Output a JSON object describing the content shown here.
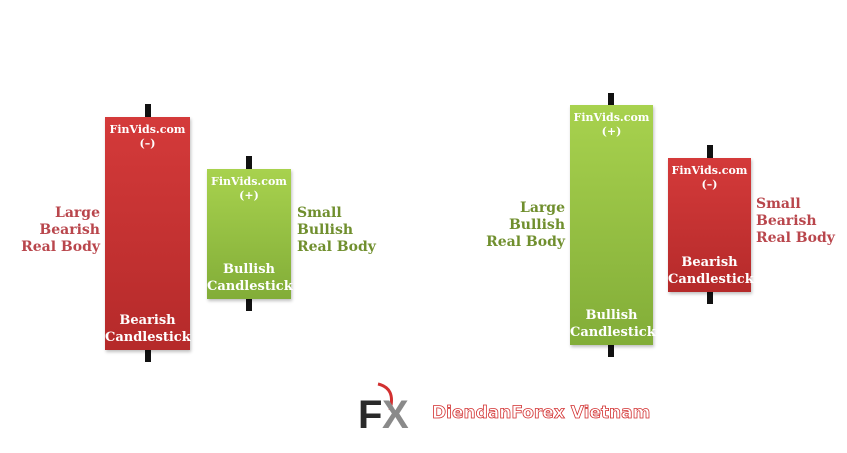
{
  "left_pair": {
    "large": {
      "brand": "FinVids.com",
      "sign": "(–)",
      "name_line1": "Bearish",
      "name_line2": "Candlestick",
      "label": [
        "Large",
        "Bearish",
        "Real Body"
      ]
    },
    "small": {
      "brand": "FinVids.com",
      "sign": "(+)",
      "name_line1": "Bullish",
      "name_line2": "Candlestick",
      "label": [
        "Small",
        "Bullish",
        "Real Body"
      ]
    }
  },
  "right_pair": {
    "large": {
      "brand": "FinVids.com",
      "sign": "(+)",
      "name_line1": "Bullish",
      "name_line2": "Candlestick",
      "label": [
        "Large",
        "Bullish",
        "Real Body"
      ]
    },
    "small": {
      "brand": "FinVids.com",
      "sign": "(–)",
      "name_line1": "Bearish",
      "name_line2": "Candlestick",
      "label": [
        "Small",
        "Bearish",
        "Real Body"
      ]
    }
  },
  "footer": {
    "logo_text": "FX",
    "site": "DiendanForex Vietnam"
  },
  "colors": {
    "bearish": "#c43232",
    "bullish": "#96c044",
    "bearish_label": "#b9464c",
    "bullish_label": "#708f2e"
  }
}
